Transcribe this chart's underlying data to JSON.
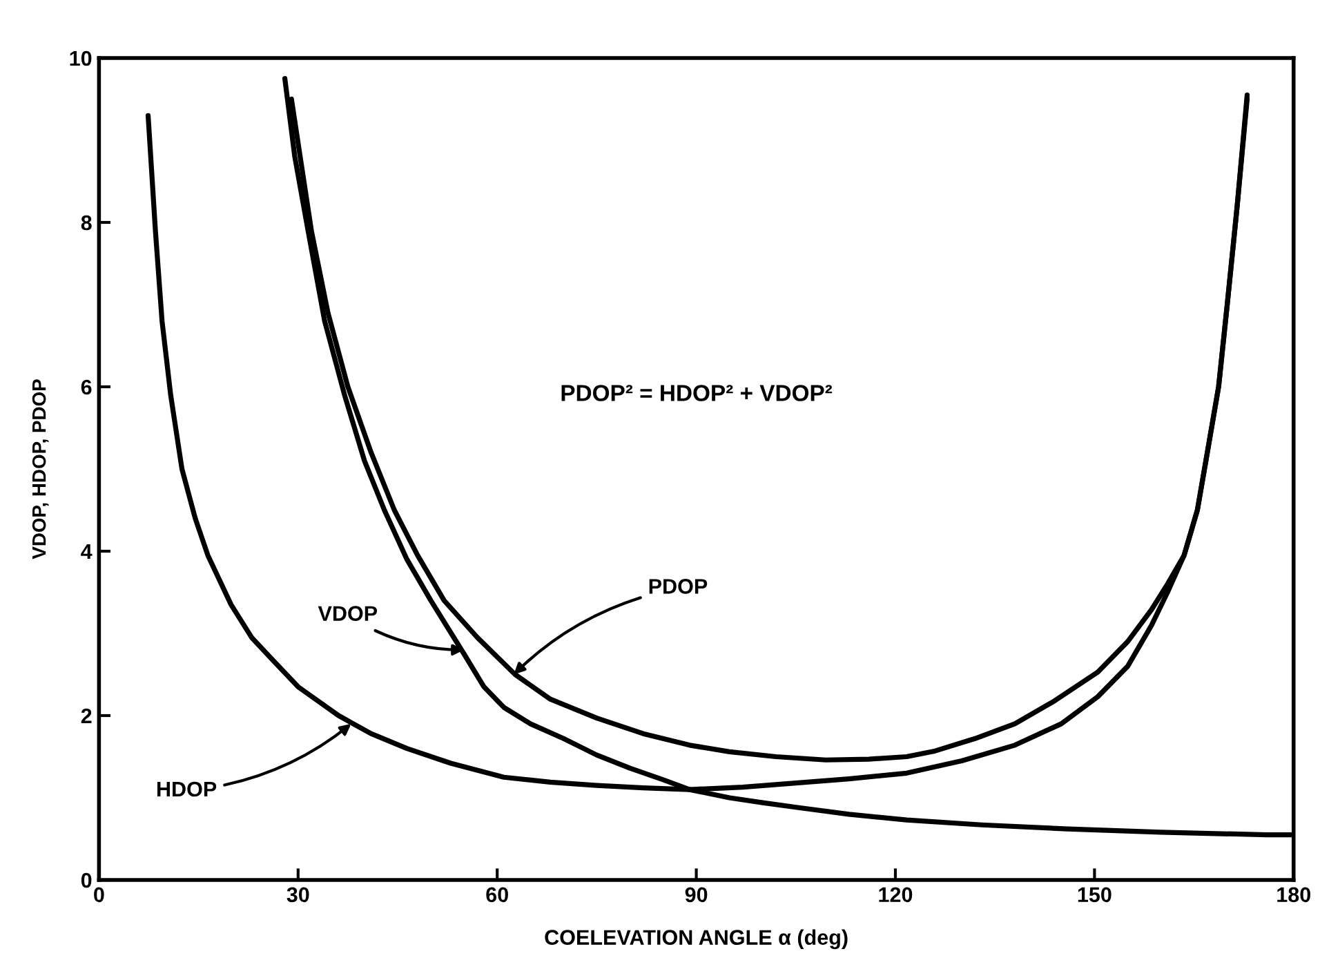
{
  "chart_data": {
    "type": "line",
    "xlabel": "COELEVATION ANGLE α (deg)",
    "ylabel": "VDOP, HDOP, PDOP",
    "xlim": [
      0,
      180
    ],
    "ylim": [
      0,
      10
    ],
    "xticks": [
      0,
      30,
      60,
      90,
      120,
      150,
      180
    ],
    "yticks": [
      0,
      2,
      4,
      6,
      8,
      10
    ],
    "grid": false,
    "legend": false,
    "marker": "none",
    "line_style": "solid",
    "series": [
      {
        "color": "#000000",
        "x": [
          7.4,
          8.5,
          9.5,
          10.8,
          12.5,
          14.5,
          16.4,
          19.9,
          23,
          25.9,
          30,
          36.1,
          41,
          46.4,
          53,
          61,
          68,
          75,
          82,
          89,
          97,
          105,
          113,
          121.7,
          130,
          138,
          145,
          150.5,
          155,
          158.6,
          161,
          163.5,
          165.5,
          167,
          168.7,
          170,
          171.5,
          173
        ],
        "values": [
          9.3,
          7.9,
          6.8,
          5.9,
          5.0,
          4.4,
          3.95,
          3.35,
          2.95,
          2.7,
          2.35,
          2.0,
          1.78,
          1.6,
          1.42,
          1.25,
          1.19,
          1.15,
          1.12,
          1.1,
          1.13,
          1.18,
          1.23,
          1.3,
          1.45,
          1.64,
          1.9,
          2.23,
          2.6,
          3.1,
          3.5,
          3.95,
          4.5,
          5.2,
          6.0,
          7.0,
          8.2,
          9.5
        ]
      },
      {
        "color": "#000000",
        "x": [
          28,
          29.5,
          31.5,
          34,
          37,
          40,
          43,
          46.4,
          50,
          55,
          58,
          61,
          65,
          70,
          75,
          80,
          85,
          89,
          95,
          100,
          105.4,
          113,
          121.7,
          133,
          146,
          160,
          176,
          180
        ],
        "values": [
          9.75,
          8.8,
          7.9,
          6.8,
          5.9,
          5.1,
          4.5,
          3.9,
          3.4,
          2.75,
          2.35,
          2.1,
          1.9,
          1.72,
          1.52,
          1.36,
          1.22,
          1.1,
          1.0,
          0.94,
          0.88,
          0.8,
          0.73,
          0.67,
          0.62,
          0.58,
          0.55,
          0.55
        ]
      },
      {
        "color": "#000000",
        "x": [
          29,
          30.5,
          32,
          34.5,
          37.5,
          41,
          44.5,
          48,
          52,
          57,
          62.7,
          68,
          75,
          82,
          89,
          95,
          102,
          109.5,
          116,
          121.7,
          126,
          132,
          138,
          144,
          150.5,
          155,
          158.6,
          161,
          163.5,
          165.5,
          167,
          168.7,
          170,
          171.5,
          173
        ],
        "values": [
          9.5,
          8.7,
          7.9,
          6.9,
          6.0,
          5.2,
          4.5,
          3.95,
          3.4,
          2.95,
          2.5,
          2.2,
          1.97,
          1.78,
          1.64,
          1.56,
          1.5,
          1.46,
          1.47,
          1.5,
          1.57,
          1.72,
          1.9,
          2.18,
          2.53,
          2.9,
          3.29,
          3.6,
          3.95,
          4.5,
          5.2,
          6.0,
          7.0,
          8.2,
          9.55
        ]
      }
    ],
    "annotations": [
      {
        "text": "PDOP² = HDOP² + VDOP²"
      },
      {
        "text": "HDOP",
        "x": 38,
        "y": 1.9
      },
      {
        "text": "VDOP",
        "x": 55,
        "y": 2.8
      },
      {
        "text": "PDOP",
        "x": 62.5,
        "y": 2.5
      }
    ]
  }
}
